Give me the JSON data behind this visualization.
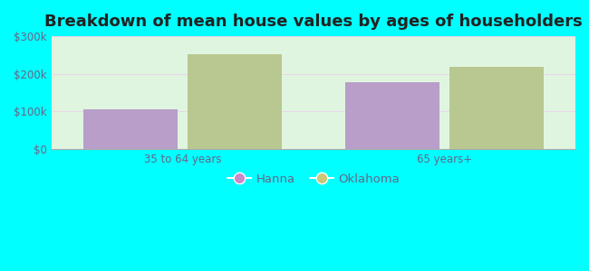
{
  "title": "Breakdown of mean house values by ages of householders",
  "categories": [
    "35 to 64 years",
    "65 years+"
  ],
  "series": {
    "Hanna": [
      105000,
      178000
    ],
    "Oklahoma": [
      253000,
      218000
    ]
  },
  "bar_colors": {
    "Hanna": "#b89ec8",
    "Oklahoma": "#b8c890"
  },
  "legend_colors": {
    "Hanna": "#cc88cc",
    "Oklahoma": "#c8c878"
  },
  "ylim": [
    0,
    300000
  ],
  "yticks": [
    0,
    100000,
    200000,
    300000
  ],
  "ytick_labels": [
    "$0",
    "$100k",
    "$200k",
    "$300k"
  ],
  "background_color": "#00ffff",
  "plot_bg_color": "#e0f5e0",
  "bar_width": 0.18,
  "title_fontsize": 13,
  "tick_fontsize": 8.5,
  "legend_fontsize": 9.5,
  "tick_color": "#666688",
  "label_color": "#666688"
}
